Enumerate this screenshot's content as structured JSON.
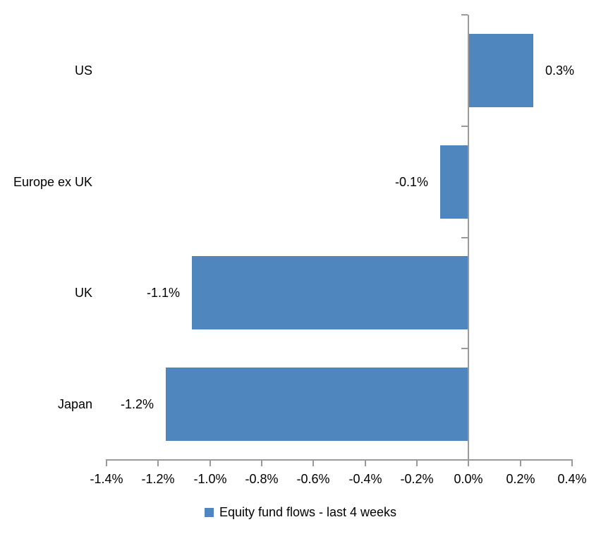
{
  "chart_data": {
    "type": "bar",
    "orientation": "horizontal",
    "title": "",
    "xlabel": "",
    "ylabel": "",
    "categories": [
      "US",
      "Europe ex UK",
      "UK",
      "Japan"
    ],
    "series": [
      {
        "name": "Equity fund flows - last 4 weeks",
        "values": [
          0.25,
          -0.11,
          -1.07,
          -1.17
        ],
        "data_labels": [
          "0.3%",
          "-0.1%",
          "-1.1%",
          "-1.2%"
        ]
      }
    ],
    "xlim": [
      -1.4,
      0.4
    ],
    "x_ticks": [
      -1.4,
      -1.2,
      -1.0,
      -0.8,
      -0.6,
      -0.4,
      -0.2,
      0.0,
      0.2,
      0.4
    ],
    "x_tick_labels": [
      "-1.4%",
      "-1.2%",
      "-1.0%",
      "-0.8%",
      "-0.6%",
      "-0.4%",
      "-0.2%",
      "0.0%",
      "0.2%",
      "0.4%"
    ],
    "grid": false,
    "legend_position": "bottom",
    "colors": {
      "bar": "#4F86BE",
      "axis": "#9A9A9A",
      "text": "#000000",
      "background": "#FFFFFF"
    }
  },
  "legend": {
    "label": "Equity fund flows - last 4 weeks"
  }
}
